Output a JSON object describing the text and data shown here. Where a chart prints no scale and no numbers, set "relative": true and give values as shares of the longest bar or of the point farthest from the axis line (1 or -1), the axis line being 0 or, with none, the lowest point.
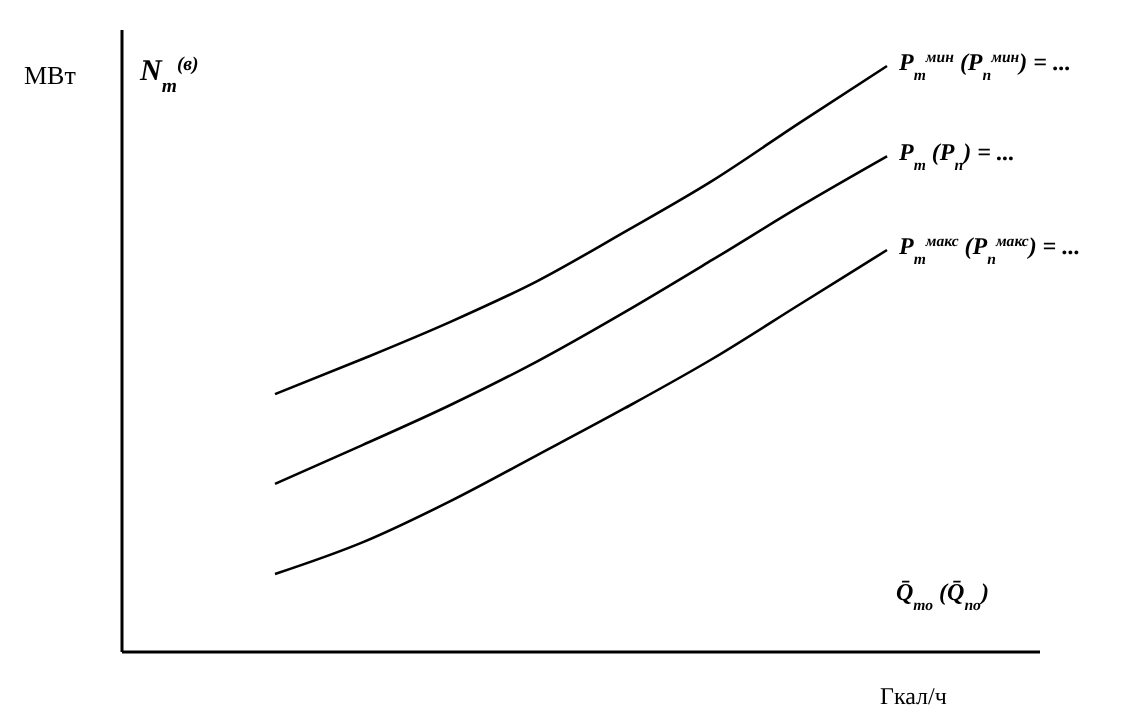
{
  "chart_data": {
    "type": "line",
    "relative": true,
    "xlabel": "Гкал/ч",
    "annotations": [
      "N$_{т}$$^{(в)}$",
      "Q̄$_{то}$ (Q̄$_{по}$)",
      "МВт"
    ],
    "categories": [
      null,
      null,
      null,
      null,
      null,
      null,
      null,
      null
    ],
    "series": [
      {
        "name": "P$_{т}$$^{мин}$ (P$_{п}$$^{мин}$) = ...",
        "color": "#000000",
        "values": [
          0.44,
          0.5,
          0.563,
          0.633,
          0.717,
          0.804,
          0.903,
          1
        ]
      },
      {
        "name": "P$_{т}$ (P$_{п}$) = ...",
        "color": "#000000",
        "values": [
          0.287,
          0.353,
          0.421,
          0.496,
          0.58,
          0.669,
          0.76,
          0.846
        ]
      },
      {
        "name": "P$_{т}$$^{макс}$ (P$_{п}$$^{макс}$) = ...",
        "color": "#000000",
        "values": [
          0.133,
          0.187,
          0.257,
          0.336,
          0.416,
          0.5,
          0.593,
          0.686
        ]
      }
    ],
    "legend": false,
    "marker": "none",
    "line_style": "solid"
  }
}
